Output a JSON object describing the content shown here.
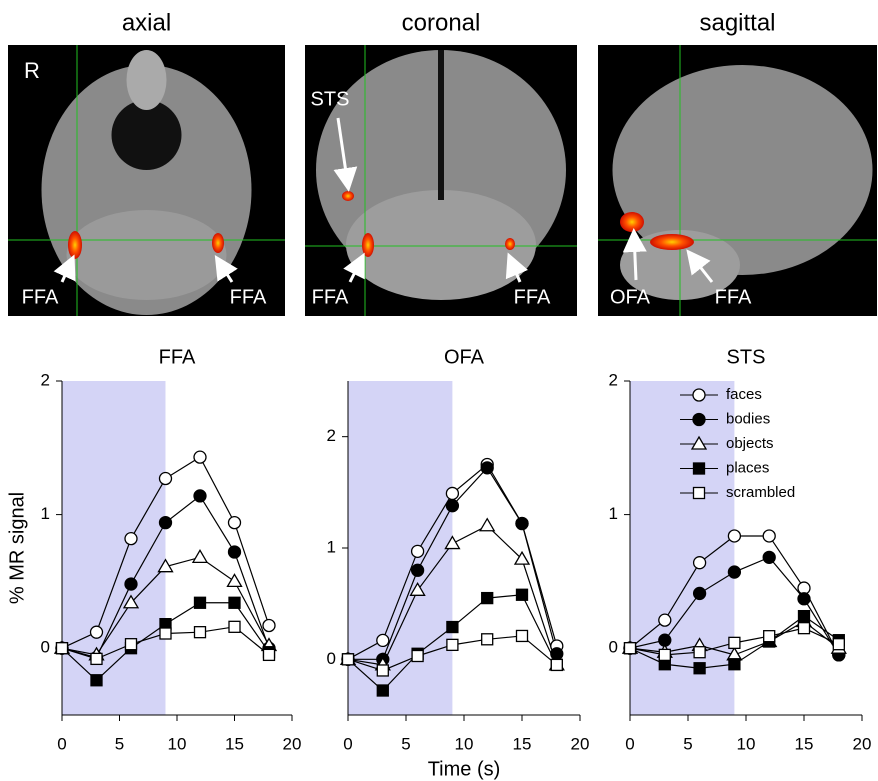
{
  "panels": [
    {
      "title": "axial",
      "labels": [
        "R",
        "FFA",
        "FFA"
      ]
    },
    {
      "title": "coronal",
      "labels": [
        "STS",
        "FFA",
        "FFA"
      ]
    },
    {
      "title": "sagittal",
      "labels": [
        "OFA",
        "FFA"
      ]
    }
  ],
  "chart_data": [
    {
      "type": "line",
      "title": "FFA",
      "y_label": "% MR signal",
      "x": [
        0,
        3,
        6,
        9,
        12,
        15,
        18
      ],
      "xlim": [
        0,
        20
      ],
      "xticks": [
        0,
        5,
        10,
        15,
        20
      ],
      "ylim": [
        -0.5,
        2
      ],
      "yticks": [
        0,
        1,
        2
      ],
      "shaded_region": [
        0,
        9
      ],
      "shade_color": "#d4d4f6",
      "series": [
        {
          "name": "faces",
          "color": "#000000",
          "marker": "circle-open",
          "values": [
            0,
            0.12,
            0.82,
            1.27,
            1.43,
            0.94,
            0.17
          ]
        },
        {
          "name": "bodies",
          "color": "#000000",
          "marker": "circle-filled",
          "values": [
            0,
            -0.07,
            0.48,
            0.94,
            1.14,
            0.72,
            0.0
          ]
        },
        {
          "name": "objects",
          "color": "#000000",
          "marker": "triangle-open",
          "values": [
            0,
            -0.05,
            0.34,
            0.61,
            0.68,
            0.5,
            0.02
          ]
        },
        {
          "name": "places",
          "color": "#000000",
          "marker": "square-filled",
          "values": [
            0,
            -0.24,
            0.0,
            0.18,
            0.34,
            0.34,
            -0.03
          ]
        },
        {
          "name": "scrambled",
          "color": "#000000",
          "marker": "square-open",
          "values": [
            0,
            -0.08,
            0.03,
            0.11,
            0.12,
            0.16,
            -0.05
          ]
        }
      ]
    },
    {
      "type": "line",
      "title": "OFA",
      "x_label": "Time (s)",
      "x": [
        0,
        3,
        6,
        9,
        12,
        15,
        18
      ],
      "xlim": [
        0,
        20
      ],
      "xticks": [
        0,
        5,
        10,
        15,
        20
      ],
      "ylim": [
        -0.5,
        2.5
      ],
      "yticks": [
        0,
        1,
        2
      ],
      "shaded_region": [
        0,
        9
      ],
      "shade_color": "#d4d4f6",
      "series": [
        {
          "name": "faces",
          "color": "#000000",
          "marker": "circle-open",
          "values": [
            0,
            0.17,
            0.97,
            1.49,
            1.75,
            1.22,
            0.12
          ]
        },
        {
          "name": "bodies",
          "color": "#000000",
          "marker": "circle-filled",
          "values": [
            0,
            0.0,
            0.8,
            1.38,
            1.72,
            1.22,
            0.05
          ]
        },
        {
          "name": "objects",
          "color": "#000000",
          "marker": "triangle-open",
          "values": [
            0,
            -0.05,
            0.62,
            1.04,
            1.2,
            0.9,
            -0.05
          ]
        },
        {
          "name": "places",
          "color": "#000000",
          "marker": "square-filled",
          "values": [
            0,
            -0.28,
            0.05,
            0.29,
            0.55,
            0.58,
            -0.05
          ]
        },
        {
          "name": "scrambled",
          "color": "#000000",
          "marker": "square-open",
          "values": [
            0,
            -0.1,
            0.03,
            0.13,
            0.18,
            0.21,
            -0.05
          ]
        }
      ]
    },
    {
      "type": "line",
      "title": "STS",
      "legend": "upper right",
      "x": [
        0,
        3,
        6,
        9,
        12,
        15,
        18
      ],
      "xlim": [
        0,
        20
      ],
      "xticks": [
        0,
        5,
        10,
        15,
        20
      ],
      "ylim": [
        -0.5,
        2
      ],
      "yticks": [
        0,
        1,
        2
      ],
      "shaded_region": [
        0,
        9
      ],
      "shade_color": "#d4d4f6",
      "series": [
        {
          "name": "faces",
          "color": "#000000",
          "marker": "circle-open",
          "values": [
            0,
            0.21,
            0.64,
            0.84,
            0.84,
            0.45,
            -0.05
          ]
        },
        {
          "name": "bodies",
          "color": "#000000",
          "marker": "circle-filled",
          "values": [
            0,
            0.06,
            0.41,
            0.57,
            0.68,
            0.37,
            -0.05
          ]
        },
        {
          "name": "objects",
          "color": "#000000",
          "marker": "triangle-open",
          "values": [
            0,
            -0.03,
            0.02,
            -0.05,
            0.05,
            0.2,
            0.0
          ]
        },
        {
          "name": "places",
          "color": "#000000",
          "marker": "square-filled",
          "values": [
            0,
            -0.12,
            -0.15,
            -0.12,
            0.05,
            0.24,
            0.06
          ]
        },
        {
          "name": "scrambled",
          "color": "#000000",
          "marker": "square-open",
          "values": [
            0,
            -0.05,
            -0.03,
            0.04,
            0.09,
            0.15,
            0.03
          ]
        }
      ]
    }
  ]
}
